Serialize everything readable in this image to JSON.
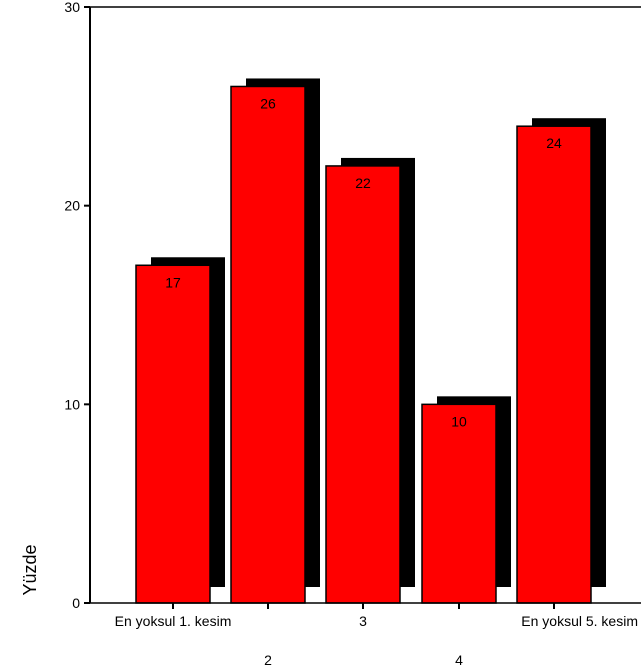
{
  "chart_data": {
    "type": "bar",
    "title": "",
    "xlabel": "",
    "ylabel": "Yüzde",
    "categories": [
      "En yoksul 1. kesim",
      "2",
      "3",
      "4",
      "En yoksul 5. kesim"
    ],
    "values": [
      17,
      26,
      22,
      10,
      24
    ],
    "data_labels": [
      "17",
      "26",
      "22",
      "10",
      "24"
    ],
    "ylim": [
      0,
      30
    ],
    "yticks": [
      "0",
      "10",
      "20",
      "30"
    ],
    "grid": false,
    "legend": "none",
    "style": {
      "bar_color": "#ff0000",
      "shadow_color": "#000000",
      "bar_edge_color": "#000000"
    }
  }
}
